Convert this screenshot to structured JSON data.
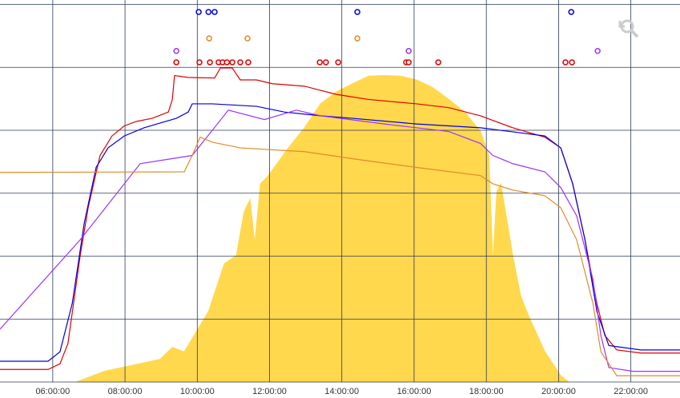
{
  "chart_data": {
    "type": "line",
    "xlim": [
      4.54,
      23.36
    ],
    "ylim": [
      0,
      6.07
    ],
    "xticks": [
      {
        "value": 6,
        "label": "06:00:00"
      },
      {
        "value": 8,
        "label": "08:00:00"
      },
      {
        "value": 10,
        "label": "10:00:00"
      },
      {
        "value": 12,
        "label": "12:00:00"
      },
      {
        "value": 14,
        "label": "14:00:00"
      },
      {
        "value": 16,
        "label": "16:00:00"
      },
      {
        "value": 18,
        "label": "18:00:00"
      },
      {
        "value": 20,
        "label": "20:00:00"
      },
      {
        "value": 22,
        "label": "22:00:00"
      }
    ],
    "yticks": [
      0,
      1,
      2,
      3,
      4,
      5,
      6
    ],
    "grid": true,
    "series": [
      {
        "type": "area",
        "color": "#ffd84d",
        "x": [
          6.65,
          7.42,
          8.97,
          9.31,
          9.64,
          10.31,
          10.75,
          11.08,
          11.3,
          11.46,
          11.59,
          11.75,
          11.97,
          12.52,
          12.97,
          13.41,
          13.85,
          14.3,
          14.74,
          15.18,
          15.63,
          16.07,
          16.51,
          16.96,
          17.4,
          17.84,
          18.07,
          18.18,
          18.29,
          18.4,
          18.51,
          18.73,
          18.95,
          19.17,
          19.62,
          20.06,
          20.28
        ],
        "values": [
          0,
          0.17,
          0.36,
          0.55,
          0.48,
          1.12,
          1.88,
          2.01,
          2.71,
          2.9,
          2.2,
          3.15,
          3.28,
          3.72,
          4.04,
          4.42,
          4.61,
          4.74,
          4.86,
          4.87,
          4.86,
          4.8,
          4.68,
          4.49,
          4.29,
          3.98,
          3.6,
          1.88,
          3.02,
          3.15,
          2.77,
          2.01,
          1.37,
          1.05,
          0.48,
          0.1,
          0
        ]
      },
      {
        "type": "line",
        "color": "#e00000",
        "x": [
          4.54,
          5.87,
          6.2,
          6.42,
          6.76,
          6.98,
          7.31,
          7.64,
          7.98,
          8.31,
          8.75,
          9.2,
          9.31,
          9.37,
          9.75,
          10.48,
          10.64,
          10.97,
          11.19,
          11.64,
          12.08,
          12.97,
          13.85,
          14.74,
          16.07,
          16.96,
          17.84,
          18.73,
          19.62,
          20.06,
          20.39,
          20.73,
          21.06,
          21.28,
          21.61,
          22.28,
          23.36
        ],
        "values": [
          0.2,
          0.2,
          0.29,
          0.61,
          2.01,
          2.77,
          3.6,
          3.91,
          4.07,
          4.14,
          4.19,
          4.29,
          4.49,
          4.87,
          4.84,
          4.83,
          4.99,
          4.99,
          4.8,
          4.8,
          4.74,
          4.7,
          4.57,
          4.49,
          4.42,
          4.36,
          4.23,
          4.04,
          3.89,
          3.72,
          3.15,
          2.26,
          1.25,
          0.74,
          0.51,
          0.46,
          0.46
        ]
      },
      {
        "type": "line",
        "color": "#0000e0",
        "x": [
          4.54,
          5.87,
          6.2,
          6.54,
          6.87,
          7.2,
          7.53,
          7.98,
          8.53,
          9.42,
          9.75,
          9.86,
          10.42,
          11.64,
          12.41,
          13.41,
          14.3,
          16.07,
          17.84,
          19.62,
          20.06,
          20.39,
          20.73,
          21.06,
          21.39,
          22.28,
          23.36
        ],
        "values": [
          0.33,
          0.33,
          0.48,
          1.25,
          2.52,
          3.41,
          3.72,
          3.91,
          4.04,
          4.19,
          4.29,
          4.42,
          4.42,
          4.38,
          4.29,
          4.23,
          4.19,
          4.1,
          4.04,
          3.91,
          3.72,
          3.15,
          2.26,
          1.12,
          0.58,
          0.51,
          0.51
        ]
      },
      {
        "type": "line",
        "color": "#9933ff",
        "x": [
          4.54,
          6.76,
          8.42,
          9.86,
          10.86,
          11.86,
          12.74,
          13.41,
          15.18,
          16.96,
          17.84,
          18.18,
          18.73,
          19.62,
          20.06,
          20.5,
          20.95,
          21.17,
          21.39,
          22.06,
          23.36
        ],
        "values": [
          0.84,
          2.26,
          3.47,
          3.6,
          4.32,
          4.17,
          4.32,
          4.23,
          4.1,
          3.98,
          3.79,
          3.6,
          3.47,
          3.34,
          3.09,
          2.64,
          1.63,
          0.74,
          0.23,
          0.17,
          0.17
        ]
      },
      {
        "type": "line",
        "color": "#e08a2a",
        "x": [
          4.54,
          9.64,
          9.86,
          10.08,
          10.42,
          11.19,
          12.97,
          14.52,
          16.07,
          17.84,
          18.18,
          18.73,
          19.62,
          20.06,
          20.5,
          20.95,
          21.17,
          21.61,
          23.36
        ],
        "values": [
          3.33,
          3.34,
          3.6,
          3.89,
          3.81,
          3.72,
          3.66,
          3.53,
          3.41,
          3.28,
          3.15,
          3.05,
          2.96,
          2.77,
          2.26,
          1.25,
          0.48,
          0.1,
          0.1
        ]
      },
      {
        "type": "markers",
        "color": "#0000e0",
        "x": [
          10.04,
          10.31,
          10.48,
          14.43,
          20.35
        ],
        "values": [
          5.88,
          5.88,
          5.88,
          5.88,
          5.88
        ]
      },
      {
        "type": "markers",
        "color": "#e08a2a",
        "x": [
          10.33,
          11.39,
          14.43
        ],
        "values": [
          5.46,
          5.46,
          5.46
        ]
      },
      {
        "type": "markers",
        "color": "#9933ff",
        "x": [
          9.42,
          15.85,
          21.08
        ],
        "values": [
          5.26,
          5.26,
          5.26
        ]
      },
      {
        "type": "markers",
        "color": "#e00000",
        "x": [
          9.42,
          10.06,
          10.35,
          10.59,
          10.7,
          10.82,
          10.97,
          11.19,
          11.41,
          13.39,
          13.56,
          13.9,
          15.78,
          15.85,
          16.67,
          20.19,
          20.37
        ],
        "values": [
          5.08,
          5.08,
          5.08,
          5.08,
          5.08,
          5.08,
          5.08,
          5.08,
          5.08,
          5.08,
          5.08,
          5.08,
          5.08,
          5.08,
          5.08,
          5.08,
          5.08
        ]
      }
    ]
  }
}
